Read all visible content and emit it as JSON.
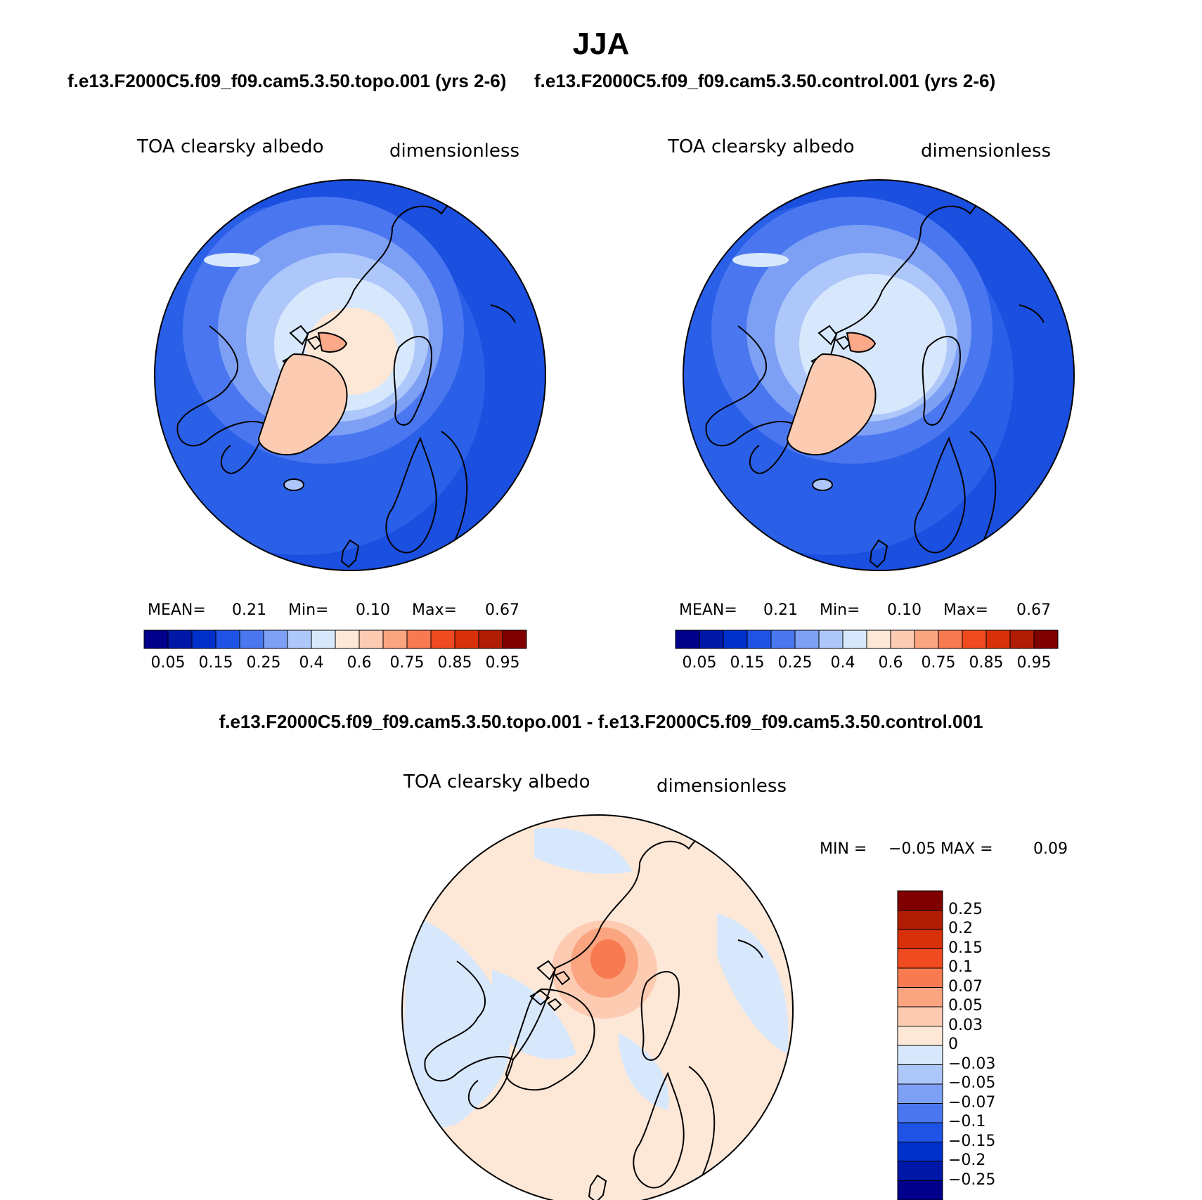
{
  "title": "JJA",
  "panels": [
    {
      "subtitle": "f.e13.F2000C5.f09_f09.cam5.3.50.topo.001 (yrs 2-6)",
      "variable": "TOA clearsky albedo",
      "units": "dimensionless",
      "stats": {
        "mean_label": "MEAN=",
        "mean": "0.21",
        "min_label": "Min=",
        "min": "0.10",
        "max_label": "Max=",
        "max": "0.67"
      }
    },
    {
      "subtitle": "f.e13.F2000C5.f09_f09.cam5.3.50.control.001 (yrs 2-6)",
      "variable": "TOA clearsky albedo",
      "units": "dimensionless",
      "stats": {
        "mean_label": "MEAN=",
        "mean": "0.21",
        "min_label": "Min=",
        "min": "0.10",
        "max_label": "Max=",
        "max": "0.67"
      }
    }
  ],
  "colorbar_abs": {
    "colors": [
      "#00008b",
      "#0018a8",
      "#0030cc",
      "#1f53e6",
      "#4a77f0",
      "#7da0f5",
      "#aec7fa",
      "#d8e8fc",
      "#fde8d8",
      "#fccbb2",
      "#fba580",
      "#f77a50",
      "#f04a20",
      "#d83008",
      "#b01c04",
      "#800000"
    ],
    "labels": [
      "0.05",
      "0.15",
      "0.25",
      "0.4",
      "0.6",
      "0.75",
      "0.85",
      "0.95"
    ]
  },
  "diff": {
    "subtitle": "f.e13.F2000C5.f09_f09.cam5.3.50.topo.001 - f.e13.F2000C5.f09_f09.cam5.3.50.control.001",
    "variable": "TOA clearsky albedo",
    "units": "dimensionless",
    "minmax": {
      "min_label": "MIN =",
      "min": "−0.05",
      "max_label": "MAX =",
      "max": "0.09"
    },
    "colorbar": {
      "colors": [
        "#800000",
        "#b01c04",
        "#d83008",
        "#f04a20",
        "#f77a50",
        "#fba580",
        "#fccbb2",
        "#fde8d8",
        "#d8e8fc",
        "#aec7fa",
        "#7da0f5",
        "#4a77f0",
        "#1f53e6",
        "#0030cc",
        "#0018a8",
        "#00008b"
      ],
      "labels": [
        "0.25",
        "0.2",
        "0.15",
        "0.1",
        "0.07",
        "0.05",
        "0.03",
        "0",
        "−0.03",
        "−0.05",
        "−0.07",
        "−0.1",
        "−0.15",
        "−0.2",
        "−0.25"
      ]
    }
  }
}
